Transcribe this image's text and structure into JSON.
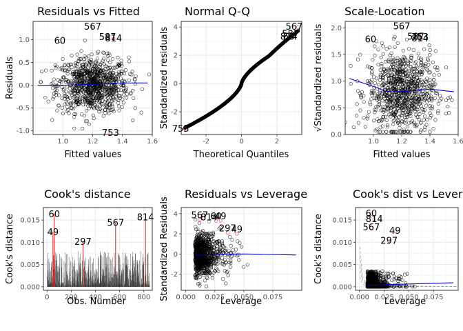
{
  "chart_data": [
    {
      "type": "scatter",
      "title": "Residuals vs Fitted",
      "xlabel": "Fitted values",
      "ylabel": "Residuals",
      "xlim": [
        0.8,
        1.6
      ],
      "ylim": [
        -1.08,
        1.4
      ],
      "xticks": [
        1.0,
        1.2,
        1.4,
        1.6
      ],
      "yticks": [
        -1.0,
        -0.5,
        0.0,
        0.5,
        1.0
      ],
      "xtick_labels": [
        "1.0",
        "1.2",
        "1.4",
        "1.6"
      ],
      "ytick_labels": [
        "-1.0",
        "-0.5",
        "0.0",
        "0.5",
        "1.0"
      ],
      "grid": true,
      "cloud": {
        "n": 900,
        "x_center": 1.2,
        "x_sd": 0.12,
        "y_sd": 0.3
      },
      "smooth_line": {
        "x": [
          0.83,
          1.0,
          1.2,
          1.4,
          1.57
        ],
        "y": [
          0.0,
          0.0,
          0.02,
          0.05,
          0.05
        ]
      },
      "highlighted_points": [
        {
          "label": "567",
          "x": 1.2,
          "y": 1.28
        },
        {
          "label": "587",
          "x": 1.3,
          "y": 1.05
        },
        {
          "label": "814",
          "x": 1.34,
          "y": 1.02
        },
        {
          "label": "60",
          "x": 0.98,
          "y": 0.97
        },
        {
          "label": "753",
          "x": 1.32,
          "y": -1.05
        }
      ]
    },
    {
      "type": "scatter",
      "title": "Normal Q-Q",
      "xlabel": "Theoretical Quantiles",
      "ylabel": "Standardized residuals",
      "xlim": [
        -3.4,
        3.4
      ],
      "ylim": [
        -3.6,
        4.4
      ],
      "xticks": [
        -2,
        0,
        2
      ],
      "yticks": [
        -2,
        0,
        2,
        4
      ],
      "xtick_labels": [
        "-2",
        "0",
        "2"
      ],
      "ytick_labels": [
        "-2",
        "0",
        "2",
        "4"
      ],
      "grid": true,
      "qq": {
        "n": 850,
        "x_range": [
          -3.2,
          3.2
        ]
      },
      "highlighted_points": [
        {
          "label": "567",
          "x": 3.2,
          "y": 4.0
        },
        {
          "label": "587",
          "x": 3.0,
          "y": 3.5
        },
        {
          "label": "814",
          "x": 2.9,
          "y": 3.3
        },
        {
          "label": "60",
          "x": 2.9,
          "y": 3.3
        },
        {
          "label": "753",
          "x": -3.2,
          "y": -3.2
        }
      ]
    },
    {
      "type": "scatter",
      "title": "Scale-Location",
      "xlabel": "Fitted values",
      "ylabel": "√Standardized residuals",
      "xlim": [
        0.8,
        1.6
      ],
      "ylim": [
        0.0,
        2.12
      ],
      "xticks": [
        1.0,
        1.2,
        1.4,
        1.6
      ],
      "yticks": [
        0.0,
        0.5,
        1.0,
        1.5,
        2.0
      ],
      "xtick_labels": [
        "1.0",
        "1.2",
        "1.4",
        "1.6"
      ],
      "ytick_labels": [
        "0.0",
        "0.5",
        "1.0",
        "1.5",
        "2.0"
      ],
      "grid": true,
      "cloud": {
        "n": 850,
        "x_center": 1.2,
        "x_sd": 0.12,
        "y_mean": 0.8,
        "y_sd": 0.38
      },
      "smooth_line": {
        "x": [
          0.83,
          1.0,
          1.1,
          1.2,
          1.4,
          1.57
        ],
        "y": [
          1.05,
          0.9,
          0.8,
          0.8,
          0.85,
          0.8
        ]
      },
      "highlighted_points": [
        {
          "label": "567",
          "x": 1.2,
          "y": 2.02
        },
        {
          "label": "587",
          "x": 1.3,
          "y": 1.83
        },
        {
          "label": "753",
          "x": 1.33,
          "y": 1.82
        },
        {
          "label": "814",
          "x": 1.33,
          "y": 1.8
        },
        {
          "label": "60",
          "x": 0.98,
          "y": 1.78
        }
      ]
    },
    {
      "type": "bar",
      "title": "Cook's distance",
      "xlabel": "Obs. Number",
      "ylabel": "Cook's distance",
      "xlim": [
        -30,
        870
      ],
      "ylim": [
        -0.0008,
        0.0178
      ],
      "xticks": [
        0,
        200,
        400,
        600,
        800
      ],
      "yticks": [
        0.0,
        0.005,
        0.01,
        0.015
      ],
      "xtick_labels": [
        "0",
        "200",
        "400",
        "600",
        "800"
      ],
      "ytick_labels": [
        "0.000",
        "0.005",
        "0.010",
        "0.015"
      ],
      "grid": true,
      "n_obs": 850,
      "highlighted_bars": [
        {
          "label": "60",
          "x": 60,
          "y": 0.0164
        },
        {
          "label": "814",
          "x": 814,
          "y": 0.0157
        },
        {
          "label": "567",
          "x": 567,
          "y": 0.0145
        },
        {
          "label": "49",
          "x": 49,
          "y": 0.0124
        },
        {
          "label": "297",
          "x": 297,
          "y": 0.0102
        }
      ]
    },
    {
      "type": "scatter",
      "title": "Residuals vs Leverage",
      "xlabel": "Leverage",
      "ylabel": "Standardized Residuals",
      "xlim": [
        -0.004,
        0.1
      ],
      "ylim": [
        -3.6,
        4.6
      ],
      "xticks": [
        0.0,
        0.025,
        0.05,
        0.075
      ],
      "yticks": [
        -2,
        0,
        2,
        4
      ],
      "xtick_labels": [
        "0.000",
        "0.025",
        "0.050",
        "0.075"
      ],
      "ytick_labels": [
        "-2",
        "0",
        "2",
        "4"
      ],
      "grid": true,
      "cloud": {
        "n": 850
      },
      "smooth_line": {
        "x": [
          0.008,
          0.025,
          0.05,
          0.075,
          0.095
        ],
        "y": [
          -0.15,
          -0.05,
          0.0,
          -0.05,
          -0.1
        ]
      },
      "highlighted_points": [
        {
          "label": "567",
          "x": 0.012,
          "y": 3.4
        },
        {
          "label": "814",
          "x": 0.02,
          "y": 3.2
        },
        {
          "label": "60",
          "x": 0.026,
          "y": 3.3
        },
        {
          "label": "49",
          "x": 0.03,
          "y": 3.3
        },
        {
          "label": "297",
          "x": 0.036,
          "y": 2.1
        },
        {
          "label": "49",
          "x": 0.044,
          "y": 2.0
        }
      ]
    },
    {
      "type": "scatter",
      "title": "Cook's dist vs Lever",
      "xlabel": "Leverage",
      "ylabel": "Cook's distance",
      "xlim": [
        -0.004,
        0.1
      ],
      "ylim": [
        -0.0008,
        0.0178
      ],
      "xticks": [
        0.0,
        0.025,
        0.05,
        0.075
      ],
      "yticks": [
        0.0,
        0.005,
        0.01,
        0.015
      ],
      "xtick_labels": [
        "0.000",
        "0.025",
        "0.050",
        "0.075"
      ],
      "ytick_labels": [
        "0.000",
        "0.005",
        "0.010",
        "0.015"
      ],
      "grid": true,
      "cloud": {
        "n": 850
      },
      "highlighted_points": [
        {
          "label": "60",
          "x": 0.012,
          "y": 0.0164
        },
        {
          "label": "814",
          "x": 0.015,
          "y": 0.0152
        },
        {
          "label": "567",
          "x": 0.012,
          "y": 0.0133
        },
        {
          "label": "49",
          "x": 0.036,
          "y": 0.0125
        },
        {
          "label": "297",
          "x": 0.03,
          "y": 0.0103
        }
      ]
    }
  ],
  "colors": {
    "point": "#000000",
    "highlight": "#e41a1c",
    "smooth": "#0000cc",
    "grid": "#ebebeb",
    "panel_border": "#333333",
    "cook_bar": "#333333",
    "contour": "#999999"
  }
}
